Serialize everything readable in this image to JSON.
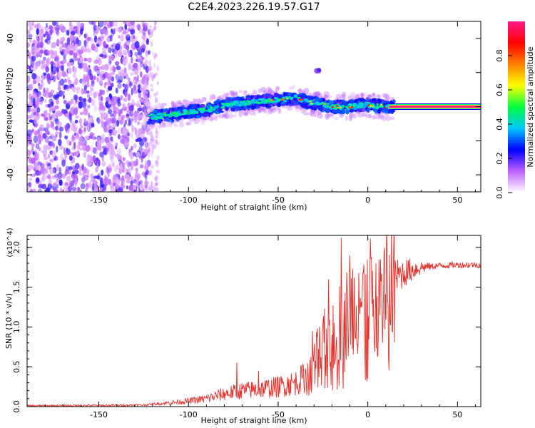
{
  "title": "C2E4.2023.226.19.57.G17",
  "chart_data": [
    {
      "type": "heatmap",
      "xlabel": "Height of straight line (km)",
      "ylabel": "Frequency (Hz)",
      "xlim": [
        -190,
        63
      ],
      "ylim": [
        -50,
        50
      ],
      "x_ticks": [
        -150,
        -100,
        -50,
        0,
        50
      ],
      "y_ticks": [
        -40,
        -20,
        0,
        20,
        40
      ],
      "colorbar": {
        "label": "Normalized spectral amplitude",
        "range": [
          0,
          1
        ],
        "ticks": [
          "0.0",
          "0.2",
          "0.4",
          "0.6",
          "0.8"
        ],
        "colors": [
          "#ffffff",
          "#c060ff",
          "#0000ff",
          "#00c8ff",
          "#00ff40",
          "#ffff00",
          "#ff8000",
          "#ff0000",
          "#ff1a8c"
        ]
      },
      "features": [
        {
          "desc": "noise",
          "x_range": [
            -190,
            -122
          ],
          "y_range": [
            -50,
            50
          ],
          "amplitude": 0.15
        },
        {
          "desc": "tracking-band",
          "points": [
            [
              -122,
              -6
            ],
            [
              -110,
              -5
            ],
            [
              -100,
              -3
            ],
            [
              -90,
              -2
            ],
            [
              -80,
              1
            ],
            [
              -70,
              2
            ],
            [
              -60,
              3
            ],
            [
              -50,
              4
            ],
            [
              -40,
              5
            ],
            [
              -35,
              3
            ],
            [
              -30,
              2
            ],
            [
              -20,
              0
            ],
            [
              -10,
              0
            ],
            [
              0,
              1
            ],
            [
              10,
              0
            ],
            [
              15,
              0
            ]
          ],
          "amplitude": 0.45
        },
        {
          "desc": "locked-carrier",
          "x_range": [
            15,
            63
          ],
          "y": 0,
          "amplitude": 1.0
        },
        {
          "desc": "spot",
          "x": -28,
          "y": 21,
          "amplitude": 0.3
        }
      ]
    },
    {
      "type": "line",
      "xlabel": "Height of straight line (km)",
      "ylabel": "SNR (10 * v/v)",
      "y_scale_label": "(x10^4)",
      "xlim": [
        -190,
        63
      ],
      "ylim": [
        0,
        2.15
      ],
      "x_ticks": [
        -150,
        -100,
        -50,
        0,
        50
      ],
      "y_ticks": [
        0.0,
        0.5,
        1.0,
        1.5,
        2.0
      ],
      "y_tick_labels": [
        "0.0",
        "0.5",
        "1.0",
        "1.5",
        "2.0"
      ],
      "color": "#e8302a",
      "envelope": [
        [
          -190,
          0.01
        ],
        [
          -150,
          0.015
        ],
        [
          -125,
          0.02
        ],
        [
          -115,
          0.04
        ],
        [
          -100,
          0.07
        ],
        [
          -90,
          0.1
        ],
        [
          -80,
          0.16
        ],
        [
          -70,
          0.2
        ],
        [
          -60,
          0.22
        ],
        [
          -50,
          0.25
        ],
        [
          -40,
          0.3
        ],
        [
          -32,
          0.42
        ],
        [
          -28,
          0.65
        ],
        [
          -24,
          0.8
        ],
        [
          -20,
          0.95
        ],
        [
          -15,
          1.05
        ],
        [
          -10,
          1.2
        ],
        [
          -5,
          1.3
        ],
        [
          0,
          1.35
        ],
        [
          5,
          1.45
        ],
        [
          10,
          1.55
        ],
        [
          15,
          1.62
        ],
        [
          20,
          1.68
        ],
        [
          25,
          1.72
        ],
        [
          30,
          1.75
        ],
        [
          40,
          1.77
        ],
        [
          50,
          1.78
        ],
        [
          63,
          1.78
        ]
      ],
      "spikes": [
        [
          -73,
          0.55
        ],
        [
          -61,
          0.45
        ],
        [
          -44,
          0.35
        ],
        [
          -31,
          0.95
        ],
        [
          -27,
          1.0
        ],
        [
          -22,
          1.6
        ],
        [
          -15,
          2.12
        ],
        [
          -10,
          1.9
        ],
        [
          -5,
          1.68
        ],
        [
          0,
          0.35
        ],
        [
          3,
          1.35
        ],
        [
          8,
          1.28
        ],
        [
          13,
          1.3
        ]
      ]
    }
  ]
}
